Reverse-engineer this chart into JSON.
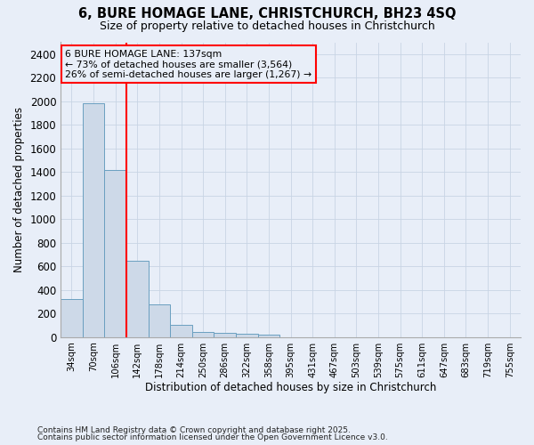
{
  "title": "6, BURE HOMAGE LANE, CHRISTCHURCH, BH23 4SQ",
  "subtitle": "Size of property relative to detached houses in Christchurch",
  "xlabel": "Distribution of detached houses by size in Christchurch",
  "ylabel": "Number of detached properties",
  "footnote1": "Contains HM Land Registry data © Crown copyright and database right 2025.",
  "footnote2": "Contains public sector information licensed under the Open Government Licence v3.0.",
  "categories": [
    "34sqm",
    "70sqm",
    "106sqm",
    "142sqm",
    "178sqm",
    "214sqm",
    "250sqm",
    "286sqm",
    "322sqm",
    "358sqm",
    "395sqm",
    "431sqm",
    "467sqm",
    "503sqm",
    "539sqm",
    "575sqm",
    "611sqm",
    "647sqm",
    "683sqm",
    "719sqm",
    "755sqm"
  ],
  "values": [
    325,
    1985,
    1420,
    650,
    280,
    105,
    45,
    38,
    25,
    18,
    0,
    0,
    0,
    0,
    0,
    0,
    0,
    0,
    0,
    0,
    0
  ],
  "bar_color": "#cdd9e8",
  "bar_edgecolor": "#6a9fc0",
  "grid_color": "#c8d4e4",
  "background_color": "#e8eef8",
  "annotation_line1": "6 BURE HOMAGE LANE: 137sqm",
  "annotation_line2": "← 73% of detached houses are smaller (3,564)",
  "annotation_line3": "26% of semi-detached houses are larger (1,267) →",
  "ylim": [
    0,
    2500
  ],
  "yticks": [
    0,
    200,
    400,
    600,
    800,
    1000,
    1200,
    1400,
    1600,
    1800,
    2000,
    2200,
    2400
  ],
  "figsize": [
    6.0,
    5.0
  ],
  "dpi": 100
}
